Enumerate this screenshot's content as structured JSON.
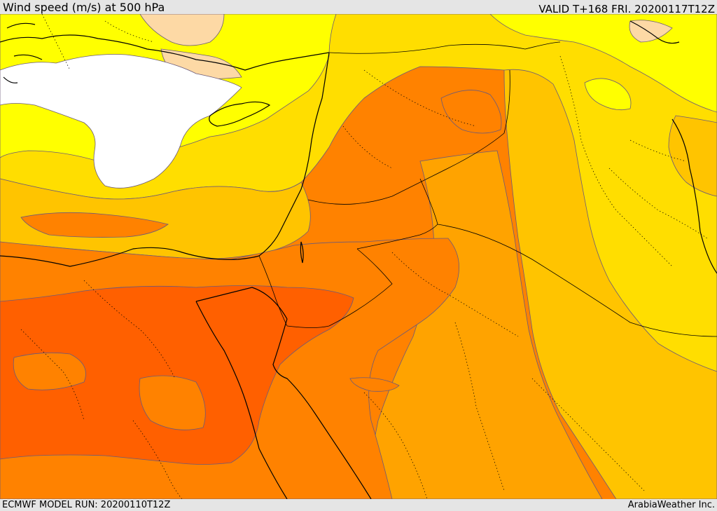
{
  "header": {
    "title": "Wind speed (m/s) at 500 hPa",
    "valid_time": "VALID T+168 FRI. 20200117T12Z"
  },
  "footer": {
    "model_run": "ECMWF MODEL RUN: 20200110T12Z",
    "credit": "ArabiaWeather Inc."
  },
  "map": {
    "variable": "wind speed at 500 hPa",
    "shading_colors": {
      "none": "#ffffff",
      "level_1": "#fdd9a5",
      "level_2": "#ffff00",
      "level_3": "#ffde00",
      "level_4": "#ffc400",
      "level_5": "#ffa300",
      "level_6": "#ff8200",
      "level_7": "#ff6000"
    },
    "coastline_color": "#000000",
    "contour_color": "#6b5a7a"
  }
}
